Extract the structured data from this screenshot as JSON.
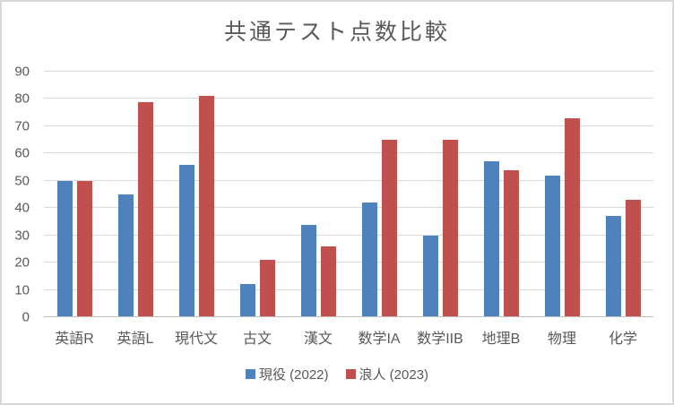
{
  "colors": {
    "text": "#595959",
    "gridline": "#D9D9D9",
    "axis_line": "#BFBFBF",
    "frame_border": "#D8D8D8",
    "background": "#FFFFFF",
    "series1": "#4F81BD",
    "series2": "#C0504D"
  },
  "chart_data": {
    "type": "bar",
    "title": "共通テスト点数比較",
    "categories": [
      "英語R",
      "英語L",
      "現代文",
      "古文",
      "漢文",
      "数学IA",
      "数学IIB",
      "地理B",
      "物理",
      "化学"
    ],
    "series": [
      {
        "name": "現役 (2022)",
        "color": "#4F81BD",
        "values": [
          50,
          45,
          56,
          12,
          34,
          42,
          30,
          57,
          52,
          37
        ]
      },
      {
        "name": "浪人 (2023)",
        "color": "#C0504D",
        "values": [
          50,
          79,
          81,
          21,
          26,
          65,
          65,
          54,
          73,
          43
        ]
      }
    ],
    "xlabel": "",
    "ylabel": "",
    "ylim": [
      0,
      90
    ],
    "yticks": [
      0,
      10,
      20,
      30,
      40,
      50,
      60,
      70,
      80,
      90
    ],
    "grid": true,
    "legend_position": "bottom"
  }
}
